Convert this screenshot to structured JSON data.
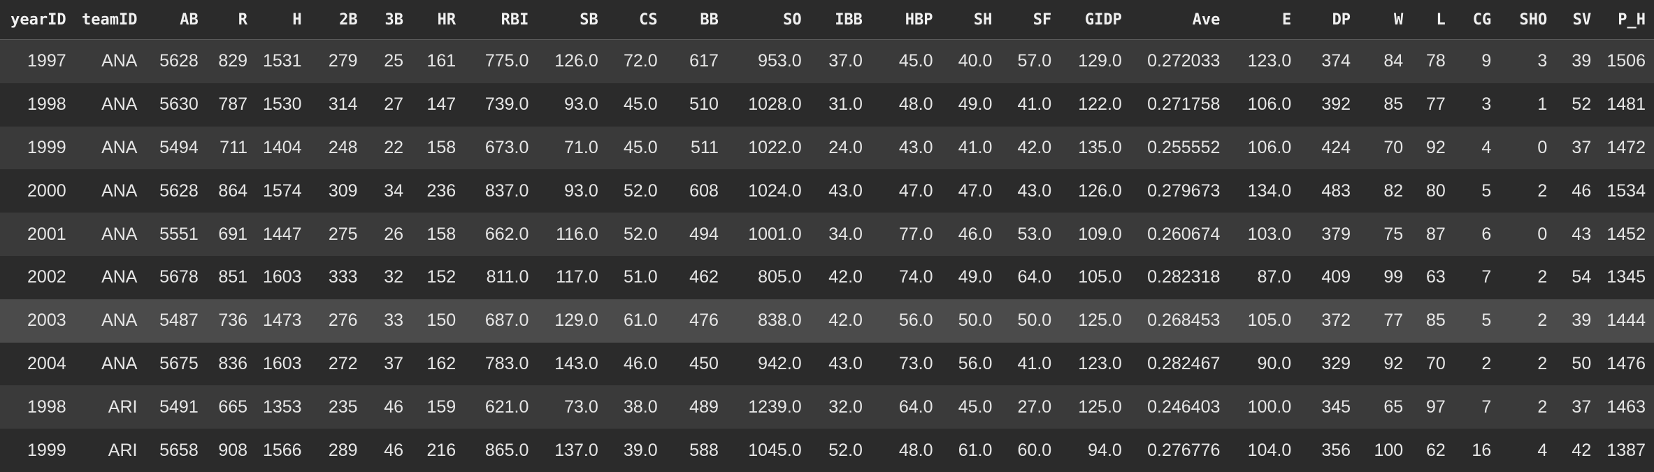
{
  "columns": [
    "yearID",
    "teamID",
    "AB",
    "R",
    "H",
    "2B",
    "3B",
    "HR",
    "RBI",
    "SB",
    "CS",
    "BB",
    "SO",
    "IBB",
    "HBP",
    "SH",
    "SF",
    "GIDP",
    "Ave",
    "E",
    "DP",
    "W",
    "L",
    "CG",
    "SHO",
    "SV",
    "P_H"
  ],
  "rows": [
    [
      "1997",
      "ANA",
      "5628",
      "829",
      "1531",
      "279",
      "25",
      "161",
      "775.0",
      "126.0",
      "72.0",
      "617",
      "953.0",
      "37.0",
      "45.0",
      "40.0",
      "57.0",
      "129.0",
      "0.272033",
      "123.0",
      "374",
      "84",
      "78",
      "9",
      "3",
      "39",
      "1506"
    ],
    [
      "1998",
      "ANA",
      "5630",
      "787",
      "1530",
      "314",
      "27",
      "147",
      "739.0",
      "93.0",
      "45.0",
      "510",
      "1028.0",
      "31.0",
      "48.0",
      "49.0",
      "41.0",
      "122.0",
      "0.271758",
      "106.0",
      "392",
      "85",
      "77",
      "3",
      "1",
      "52",
      "1481"
    ],
    [
      "1999",
      "ANA",
      "5494",
      "711",
      "1404",
      "248",
      "22",
      "158",
      "673.0",
      "71.0",
      "45.0",
      "511",
      "1022.0",
      "24.0",
      "43.0",
      "41.0",
      "42.0",
      "135.0",
      "0.255552",
      "106.0",
      "424",
      "70",
      "92",
      "4",
      "0",
      "37",
      "1472"
    ],
    [
      "2000",
      "ANA",
      "5628",
      "864",
      "1574",
      "309",
      "34",
      "236",
      "837.0",
      "93.0",
      "52.0",
      "608",
      "1024.0",
      "43.0",
      "47.0",
      "47.0",
      "43.0",
      "126.0",
      "0.279673",
      "134.0",
      "483",
      "82",
      "80",
      "5",
      "2",
      "46",
      "1534"
    ],
    [
      "2001",
      "ANA",
      "5551",
      "691",
      "1447",
      "275",
      "26",
      "158",
      "662.0",
      "116.0",
      "52.0",
      "494",
      "1001.0",
      "34.0",
      "77.0",
      "46.0",
      "53.0",
      "109.0",
      "0.260674",
      "103.0",
      "379",
      "75",
      "87",
      "6",
      "0",
      "43",
      "1452"
    ],
    [
      "2002",
      "ANA",
      "5678",
      "851",
      "1603",
      "333",
      "32",
      "152",
      "811.0",
      "117.0",
      "51.0",
      "462",
      "805.0",
      "42.0",
      "74.0",
      "49.0",
      "64.0",
      "105.0",
      "0.282318",
      "87.0",
      "409",
      "99",
      "63",
      "7",
      "2",
      "54",
      "1345"
    ],
    [
      "2003",
      "ANA",
      "5487",
      "736",
      "1473",
      "276",
      "33",
      "150",
      "687.0",
      "129.0",
      "61.0",
      "476",
      "838.0",
      "42.0",
      "56.0",
      "50.0",
      "50.0",
      "125.0",
      "0.268453",
      "105.0",
      "372",
      "77",
      "85",
      "5",
      "2",
      "39",
      "1444"
    ],
    [
      "2004",
      "ANA",
      "5675",
      "836",
      "1603",
      "272",
      "37",
      "162",
      "783.0",
      "143.0",
      "46.0",
      "450",
      "942.0",
      "43.0",
      "73.0",
      "56.0",
      "41.0",
      "123.0",
      "0.282467",
      "90.0",
      "329",
      "92",
      "70",
      "2",
      "2",
      "50",
      "1476"
    ],
    [
      "1998",
      "ARI",
      "5491",
      "665",
      "1353",
      "235",
      "46",
      "159",
      "621.0",
      "73.0",
      "38.0",
      "489",
      "1239.0",
      "32.0",
      "64.0",
      "45.0",
      "27.0",
      "125.0",
      "0.246403",
      "100.0",
      "345",
      "65",
      "97",
      "7",
      "2",
      "37",
      "1463"
    ],
    [
      "1999",
      "ARI",
      "5658",
      "908",
      "1566",
      "289",
      "46",
      "216",
      "865.0",
      "137.0",
      "39.0",
      "588",
      "1045.0",
      "52.0",
      "48.0",
      "61.0",
      "60.0",
      "94.0",
      "0.276776",
      "104.0",
      "356",
      "100",
      "62",
      "16",
      "4",
      "42",
      "1387"
    ]
  ],
  "highlighted_row_index": 6
}
